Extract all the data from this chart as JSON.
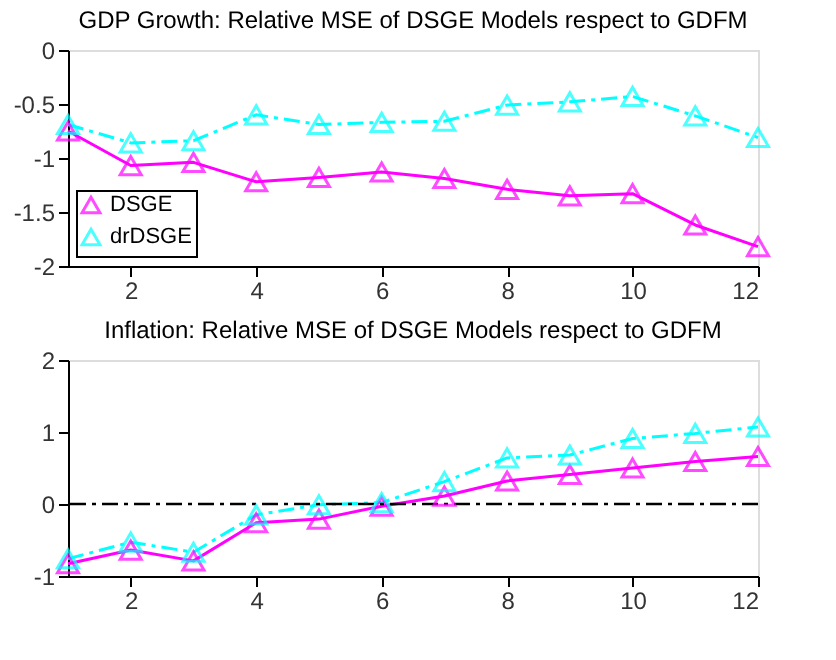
{
  "chart_data": [
    {
      "type": "line",
      "title": "GDP Growth: Relative MSE of DSGE Models respect to GDFM",
      "x": [
        1,
        2,
        3,
        4,
        5,
        6,
        7,
        8,
        9,
        10,
        11,
        12
      ],
      "xlim": [
        1,
        12
      ],
      "xticks": [
        2,
        4,
        6,
        8,
        10,
        12
      ],
      "ylim": [
        -2,
        0
      ],
      "yticks": [
        -2,
        -1.5,
        -1,
        -0.5,
        0
      ],
      "marker": "triangle",
      "grid": false,
      "legend": "bottom left",
      "series": [
        {
          "name": "DSGE",
          "color": "#ff00ff",
          "line_style": "solid",
          "values": [
            -0.75,
            -1.07,
            -1.04,
            -1.22,
            -1.18,
            -1.13,
            -1.19,
            -1.29,
            -1.35,
            -1.33,
            -1.62,
            -1.82
          ]
        },
        {
          "name": "drDSGE",
          "color": "#00ffff",
          "line_style": "dashdot",
          "values": [
            -0.69,
            -0.86,
            -0.84,
            -0.6,
            -0.69,
            -0.67,
            -0.66,
            -0.51,
            -0.48,
            -0.43,
            -0.61,
            -0.81
          ]
        }
      ]
    },
    {
      "type": "line",
      "title": "Inflation: Relative MSE of DSGE Models respect to GDFM",
      "x": [
        1,
        2,
        3,
        4,
        5,
        6,
        7,
        8,
        9,
        10,
        11,
        12
      ],
      "xlim": [
        1,
        12
      ],
      "xticks": [
        2,
        4,
        6,
        8,
        10,
        12
      ],
      "ylim": [
        -1,
        2
      ],
      "yticks": [
        -1,
        0,
        1,
        2
      ],
      "marker": "triangle",
      "grid": false,
      "legend": false,
      "ref_lines": [
        {
          "axis": "y",
          "value": 0,
          "color": "#000000",
          "line_style": "dashdot"
        }
      ],
      "series": [
        {
          "color": "#ff00ff",
          "line_style": "solid",
          "values": [
            -0.83,
            -0.64,
            -0.79,
            -0.26,
            -0.21,
            -0.03,
            0.11,
            0.32,
            0.41,
            0.5,
            0.59,
            0.66
          ]
        },
        {
          "color": "#00ffff",
          "line_style": "dashdot",
          "values": [
            -0.76,
            -0.53,
            -0.67,
            -0.15,
            -0.01,
            0.02,
            0.31,
            0.64,
            0.68,
            0.91,
            0.98,
            1.07
          ]
        }
      ]
    }
  ]
}
